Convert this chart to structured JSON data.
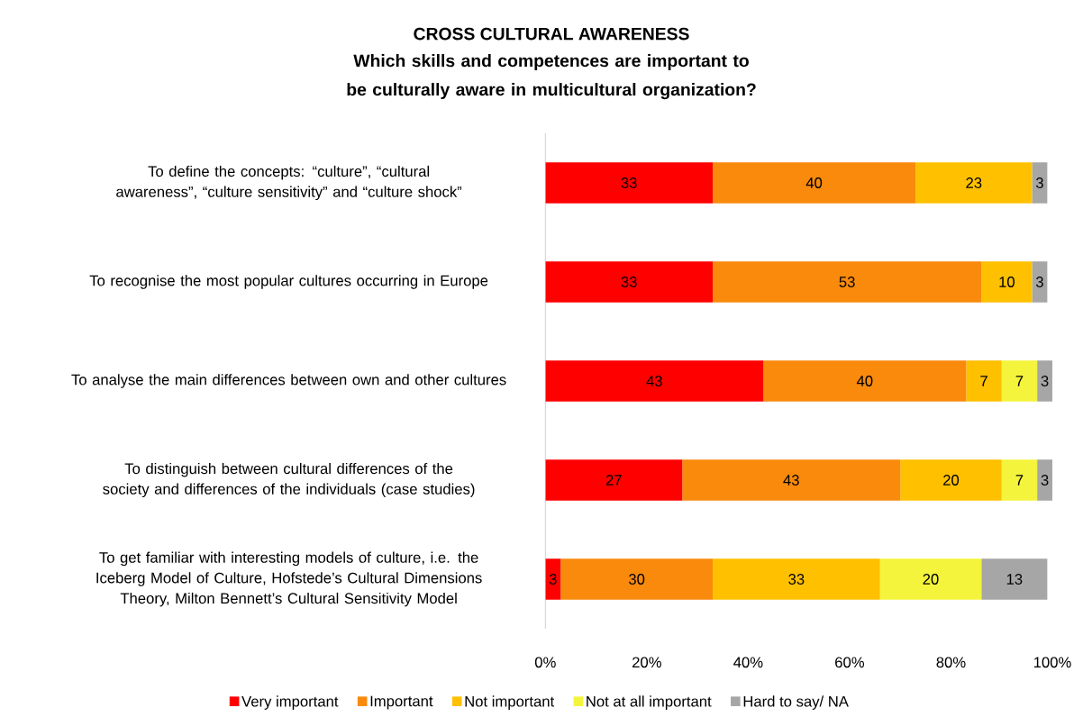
{
  "chart_data": {
    "type": "bar",
    "orientation": "horizontal",
    "stacked": true,
    "data_labels": true,
    "legend": "bottom",
    "title": "CROSS CULTURAL AWARENESS",
    "subtitle": "Which skills and competences are important to be culturally aware in multicultural organization?",
    "categories": [
      "To define the concepts: “culture”, “cultural awareness”, “culture sensitivity” and “culture shock”",
      "To recognise the most popular cultures occurring in Europe",
      "To analyse the main differences between own and other cultures",
      "To distinguish between cultural differences of the society and differences of the individuals (case studies)",
      "To get familiar with interesting models of culture, i.e. the Iceberg Model of Culture, Hofstede’s Cultural Dimensions Theory, Milton Bennett’s Cultural Sensitivity Model"
    ],
    "series": [
      {
        "name": "Very important",
        "color": "#ff0000",
        "values": [
          33,
          33,
          43,
          27,
          3
        ]
      },
      {
        "name": "Important",
        "color": "#f98a0c",
        "values": [
          40,
          53,
          40,
          43,
          30
        ]
      },
      {
        "name": "Not important",
        "color": "#ffc000",
        "values": [
          23,
          10,
          7,
          20,
          33
        ]
      },
      {
        "name": "Not at all important",
        "color": "#f4f43c",
        "values": [
          null,
          null,
          7,
          7,
          20
        ]
      },
      {
        "name": "Hard to say/ NA",
        "color": "#a6a6a6",
        "values": [
          3,
          3,
          3,
          3,
          13
        ]
      }
    ],
    "xlim": [
      0,
      100
    ],
    "xticks": [
      {
        "value": 0,
        "label": "0%"
      },
      {
        "value": 20,
        "label": "20%"
      },
      {
        "value": 40,
        "label": "40%"
      },
      {
        "value": 60,
        "label": "60%"
      },
      {
        "value": 80,
        "label": "80%"
      },
      {
        "value": 100,
        "label": "100%"
      }
    ]
  }
}
